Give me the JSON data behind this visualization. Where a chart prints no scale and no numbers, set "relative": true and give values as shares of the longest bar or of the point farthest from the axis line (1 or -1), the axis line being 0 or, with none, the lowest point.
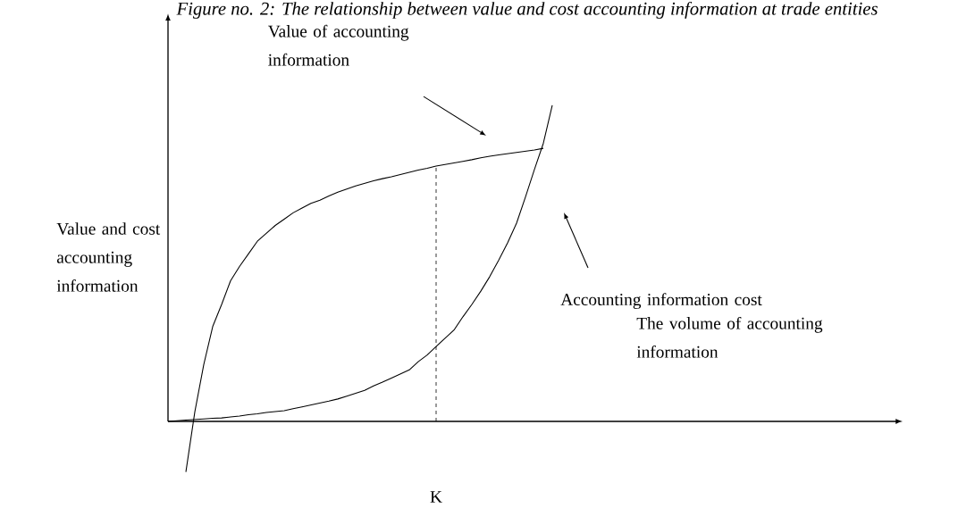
{
  "chart_data": {
    "type": "line",
    "relative": true,
    "title": "Figure no. 2: The relationship between value and cost accounting information at trade entities",
    "xlabel": "The volume of accounting information",
    "ylabel": "Value and cost accounting information",
    "categories": [
      null,
      null,
      null,
      null,
      null,
      null,
      null,
      null,
      null,
      null,
      null,
      null,
      null,
      null,
      null,
      null,
      null,
      null,
      null,
      null,
      null,
      null,
      null,
      null,
      null,
      null,
      null,
      null,
      null,
      null,
      null,
      null,
      null,
      null,
      null,
      null,
      null,
      null,
      null,
      null,
      null,
      null,
      null,
      null
    ],
    "legend": false,
    "series": [
      {
        "color": "#000000",
        "values": [
          null,
          null,
          -0.16,
          0.03,
          0.18,
          0.3,
          0.37,
          0.445,
          0.49,
          0.53,
          0.57,
          0.595,
          0.62,
          0.64,
          0.66,
          0.675,
          0.69,
          0.7,
          0.713,
          0.725,
          0.735,
          0.745,
          0.753,
          0.761,
          0.768,
          0.774,
          0.781,
          0.788,
          0.795,
          0.801,
          0.808,
          0.813,
          0.818,
          0.823,
          0.828,
          0.834,
          0.839,
          0.843,
          0.847,
          0.851,
          0.855,
          0.859,
          0.864,
          null
        ]
      },
      {
        "color": "#000000",
        "values": [
          0,
          0.002,
          0.004,
          0.006,
          0.008,
          0.01,
          0.011,
          0.014,
          0.017,
          0.021,
          0.024,
          0.028,
          0.031,
          0.034,
          0.04,
          0.046,
          0.052,
          0.058,
          0.064,
          0.071,
          0.08,
          0.089,
          0.098,
          0.112,
          0.124,
          0.137,
          0.15,
          0.163,
          0.189,
          0.21,
          0.237,
          0.263,
          0.289,
          0.331,
          0.37,
          0.412,
          0.458,
          0.51,
          0.565,
          0.627,
          0.71,
          0.797,
          0.88,
          1
        ]
      }
    ],
    "annotations": [
      "K",
      "Value of accounting information",
      "Accounting information cost"
    ]
  }
}
